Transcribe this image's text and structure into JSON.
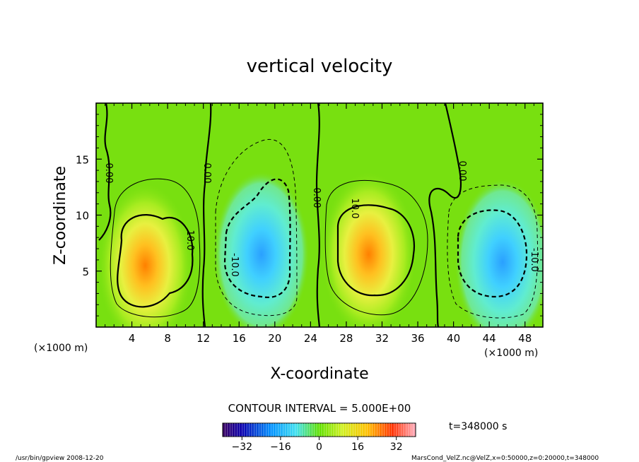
{
  "chart_data": {
    "type": "heatmap",
    "title": "vertical velocity",
    "xlabel": "X-coordinate",
    "ylabel": "Z-coordinate",
    "x_unit": "(×1000 m)",
    "y_unit": "(×1000 m)",
    "xlim": [
      0,
      50
    ],
    "ylim": [
      0,
      20
    ],
    "x_ticks": [
      4,
      8,
      12,
      16,
      20,
      24,
      28,
      32,
      36,
      40,
      44,
      48
    ],
    "y_ticks": [
      5,
      10,
      15
    ],
    "contour_labels": [
      "0.00",
      "0.00",
      "0.00",
      "0.00",
      "10.0",
      "10.0",
      "-10.0",
      "-10.0"
    ],
    "contour_interval_label": "CONTOUR INTERVAL = 5.000E+00",
    "time_label": "t=348000 s",
    "colorbar": {
      "min": -40,
      "max": 40,
      "ticks": [
        -32,
        -16,
        0,
        16,
        32
      ]
    },
    "cells": [
      {
        "x": 5.5,
        "z": 5.5,
        "w": 33,
        "sign": 1
      },
      {
        "x": 18.5,
        "z": 6.5,
        "w": -26,
        "sign": -1
      },
      {
        "x": 30.5,
        "z": 6.5,
        "w": 31,
        "sign": 1
      },
      {
        "x": 45.5,
        "z": 5.8,
        "w": -27,
        "sign": -1
      }
    ]
  },
  "footer": {
    "left": "/usr/bin/gpview   2008-12-20",
    "right": "MarsCond_VelZ.nc@VelZ,x=0:50000,z=0:20000,t=348000"
  }
}
